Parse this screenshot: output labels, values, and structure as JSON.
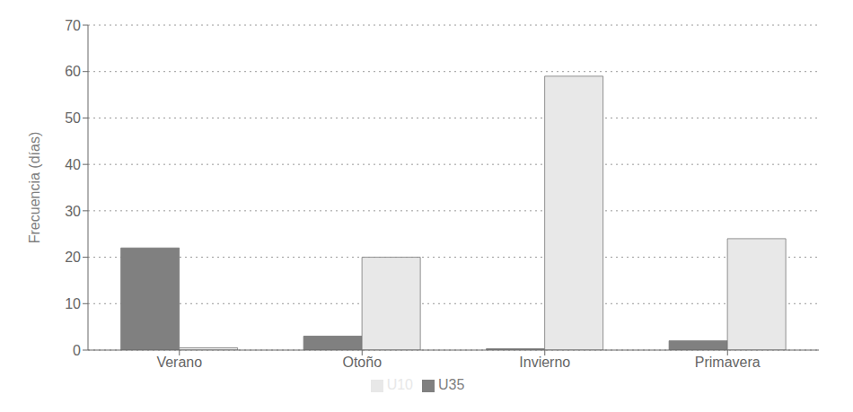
{
  "chart_data": {
    "type": "bar",
    "categories": [
      "Verano",
      "Otoño",
      "Invierno",
      "Primavera"
    ],
    "series": [
      {
        "name": "U35",
        "color": "#808080",
        "values": [
          22,
          3,
          0.3,
          2
        ]
      },
      {
        "name": "U10",
        "color": "#e8e8e8",
        "values": [
          0.5,
          20,
          59,
          24
        ]
      }
    ],
    "ylabel": "Frecuencia (días)",
    "ylim": [
      0,
      70
    ],
    "yticks": [
      0,
      10,
      20,
      30,
      40,
      50,
      60,
      70
    ],
    "grid": true,
    "legend": "bottom"
  }
}
